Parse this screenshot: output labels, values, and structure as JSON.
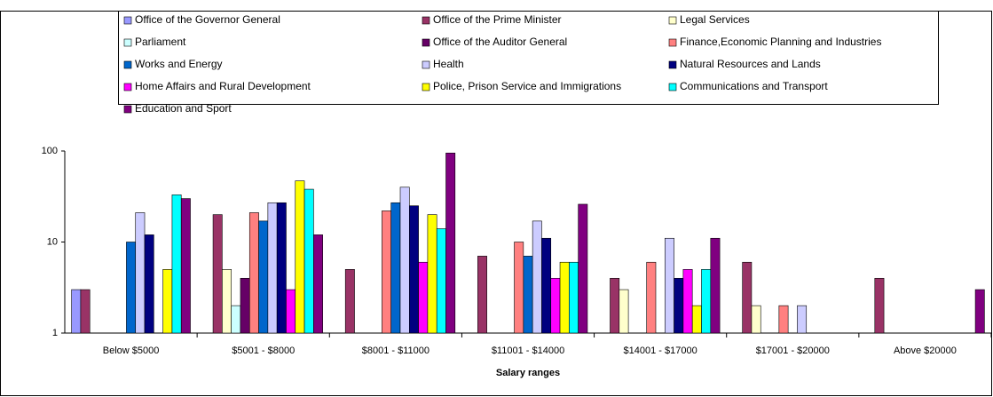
{
  "chart_data": {
    "type": "bar",
    "x_label": "Salary ranges",
    "categories": [
      "Below  $5000",
      "$5001 - $8000",
      "$8001 - $11000",
      "$11001 - $14000",
      "$14001 - $17000",
      "$17001 - $20000",
      "Above  $20000"
    ],
    "log_scale": true,
    "grid": false,
    "ylim": [
      1,
      100
    ],
    "yticks": [
      1,
      10,
      100
    ],
    "series": [
      {
        "name": "Office of the Governor General",
        "color": "#9999ff",
        "values": [
          3,
          null,
          null,
          null,
          null,
          null,
          null
        ]
      },
      {
        "name": "Office of the Prime Minister",
        "color": "#993366",
        "values": [
          3,
          20,
          5,
          7,
          4,
          6,
          4
        ]
      },
      {
        "name": "Legal Services",
        "color": "#ffffcc",
        "values": [
          null,
          5,
          null,
          null,
          3,
          2,
          null
        ]
      },
      {
        "name": "Parliament",
        "color": "#ccffff",
        "values": [
          null,
          2,
          null,
          null,
          null,
          null,
          null
        ]
      },
      {
        "name": "Office of the Auditor General",
        "color": "#660066",
        "values": [
          null,
          4,
          null,
          null,
          null,
          null,
          null
        ]
      },
      {
        "name": "Finance,Economic Planning and Industries",
        "color": "#ff8080",
        "values": [
          null,
          21,
          22,
          10,
          6,
          2,
          null
        ]
      },
      {
        "name": "Works and Energy",
        "color": "#0066cc",
        "values": [
          10,
          17,
          27,
          7,
          null,
          null,
          null
        ]
      },
      {
        "name": "Health",
        "color": "#ccccff",
        "values": [
          21,
          27,
          40,
          17,
          11,
          2,
          null
        ]
      },
      {
        "name": "Natural Resources and Lands",
        "color": "#000080",
        "values": [
          12,
          27,
          25,
          11,
          4,
          null,
          null
        ]
      },
      {
        "name": "Home Affairs and Rural Development",
        "color": "#ff00ff",
        "values": [
          null,
          3,
          6,
          4,
          5,
          null,
          null
        ]
      },
      {
        "name": "Police, Prison Service and Immigrations",
        "color": "#ffff00",
        "values": [
          5,
          47,
          20,
          6,
          2,
          null,
          null
        ]
      },
      {
        "name": "Communications and Transport",
        "color": "#00ffff",
        "values": [
          33,
          38,
          14,
          6,
          5,
          null,
          null
        ]
      },
      {
        "name": "Education and Sport",
        "color": "#800080",
        "values": [
          30,
          12,
          95,
          26,
          11,
          null,
          3
        ]
      }
    ]
  }
}
